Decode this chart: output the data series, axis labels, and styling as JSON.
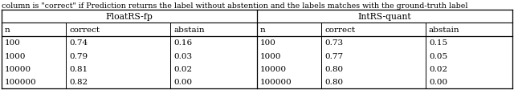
{
  "caption": "column is \"correct\" if Prediction returns the label without abstention and the labels matches with the ground-truth label",
  "header1": "FloatRS-fp",
  "header2": "IntRS-quant",
  "col_headers": [
    "n",
    "correct",
    "abstain",
    "n",
    "correct",
    "abstain"
  ],
  "float_data": [
    [
      "100",
      "0.74",
      "0.16"
    ],
    [
      "1000",
      "0.79",
      "0.03"
    ],
    [
      "10000",
      "0.81",
      "0.02"
    ],
    [
      "100000",
      "0.82",
      "0.00"
    ]
  ],
  "int_data": [
    [
      "100",
      "0.73",
      "0.15"
    ],
    [
      "1000",
      "0.77",
      "0.05"
    ],
    [
      "10000",
      "0.80",
      "0.02"
    ],
    [
      "100000",
      "0.80",
      "0.00"
    ]
  ],
  "bg_color": "#ffffff",
  "text_color": "#000000",
  "caption_fontsize": 6.8,
  "header_fontsize": 7.8,
  "cell_fontsize": 7.5,
  "figwidth": 6.4,
  "figheight": 1.13,
  "dpi": 100
}
